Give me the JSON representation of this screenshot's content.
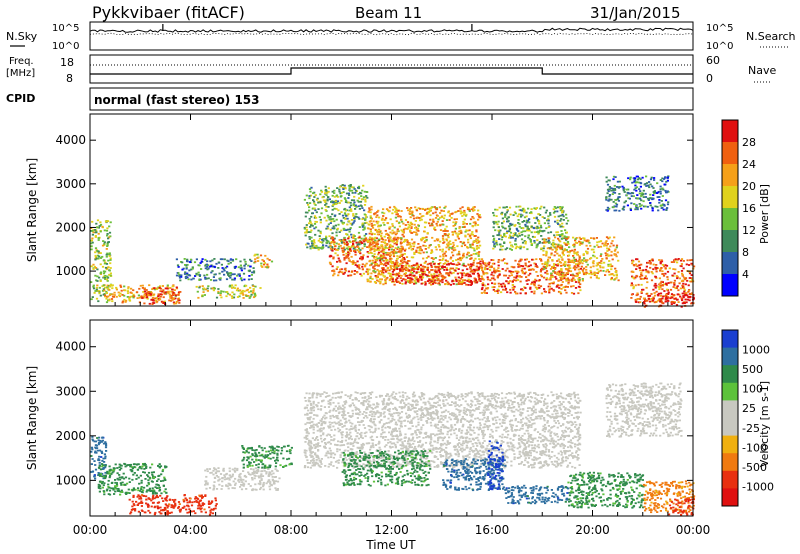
{
  "header": {
    "station": "Pykkvibaer (fitACF)",
    "beam": "Beam 11",
    "date": "31/Jan/2015"
  },
  "strip_labels": {
    "nsky": "N.Sky",
    "nsearch": "N.Search",
    "freq_line1": "Freq.",
    "freq_line2": "[MHz]",
    "nave": "Nave",
    "cpid": "CPID",
    "cpid_value": "normal (fast stereo) 153",
    "noise_ticks_left": [
      "10^5",
      "10^0"
    ],
    "noise_ticks_right": [
      "10^5",
      "10^0"
    ],
    "freq_ticks": [
      "18",
      "8"
    ],
    "nave_ticks": [
      "60",
      "0"
    ]
  },
  "x_axis": {
    "label": "Time UT",
    "ticks": [
      "00:00",
      "04:00",
      "08:00",
      "12:00",
      "16:00",
      "20:00",
      "00:00"
    ],
    "tick_hours": [
      0,
      4,
      8,
      12,
      16,
      20,
      24
    ],
    "range_hours": [
      0,
      24
    ]
  },
  "colors": {
    "power_scale": [
      "#0000ff",
      "#2e5fa8",
      "#3f8a5a",
      "#6bbf3a",
      "#e0d21c",
      "#f5a019",
      "#f06010",
      "#e01010"
    ],
    "velocity_scale": [
      "#1a3fd0",
      "#2e6fa0",
      "#2f8a4a",
      "#5cc23a",
      "#c8c8c0",
      "#c8c8c0",
      "#f0b010",
      "#f07a10",
      "#e83010",
      "#e01010"
    ]
  },
  "chart_data": [
    {
      "type": "heatmap",
      "panel": "power",
      "ylabel": "Slant Range [km]",
      "yticks": [
        1000,
        2000,
        3000,
        4000
      ],
      "ylim": [
        200,
        4600
      ],
      "xlim_hours": [
        0,
        24
      ],
      "colorbar": {
        "label": "Power [dB]",
        "ticks": [
          "28",
          "24",
          "20",
          "16",
          "12",
          "8",
          "4"
        ],
        "range": [
          0,
          30
        ]
      },
      "regions": [
        {
          "t0": 0.0,
          "t1": 0.8,
          "r0": 300,
          "r1": 2200,
          "level": 14
        },
        {
          "t0": 0.5,
          "t1": 3.5,
          "r0": 300,
          "r1": 700,
          "level": 20
        },
        {
          "t0": 2.0,
          "t1": 3.6,
          "r0": 250,
          "r1": 650,
          "level": 26
        },
        {
          "t0": 3.4,
          "t1": 6.5,
          "r0": 800,
          "r1": 1300,
          "level": 8
        },
        {
          "t0": 4.2,
          "t1": 6.8,
          "r0": 400,
          "r1": 700,
          "level": 16
        },
        {
          "t0": 6.5,
          "t1": 7.2,
          "r0": 1100,
          "r1": 1400,
          "level": 20
        },
        {
          "t0": 8.5,
          "t1": 11.0,
          "r0": 1500,
          "r1": 3000,
          "level": 12
        },
        {
          "t0": 9.5,
          "t1": 12.5,
          "r0": 900,
          "r1": 1800,
          "level": 24
        },
        {
          "t0": 11.0,
          "t1": 15.5,
          "r0": 700,
          "r1": 2500,
          "level": 20
        },
        {
          "t0": 12.0,
          "t1": 15.5,
          "r0": 700,
          "r1": 1200,
          "level": 28
        },
        {
          "t0": 15.5,
          "t1": 19.5,
          "r0": 500,
          "r1": 1300,
          "level": 24
        },
        {
          "t0": 16.0,
          "t1": 19.0,
          "r0": 1500,
          "r1": 2500,
          "level": 12
        },
        {
          "t0": 18.0,
          "t1": 21.0,
          "r0": 800,
          "r1": 1800,
          "level": 20
        },
        {
          "t0": 20.5,
          "t1": 23.0,
          "r0": 2400,
          "r1": 3200,
          "level": 8
        },
        {
          "t0": 21.5,
          "t1": 24.0,
          "r0": 300,
          "r1": 1300,
          "level": 24
        },
        {
          "t0": 22.0,
          "t1": 24.0,
          "r0": 200,
          "r1": 500,
          "level": 28
        }
      ]
    },
    {
      "type": "heatmap",
      "panel": "velocity",
      "ylabel": "Slant Range [km]",
      "yticks": [
        1000,
        2000,
        3000,
        4000
      ],
      "ylim": [
        200,
        4600
      ],
      "xlim_hours": [
        0,
        24
      ],
      "colorbar": {
        "label": "Velocity [m s-1]",
        "ticks": [
          "1000",
          "500",
          "100",
          "25",
          "-25",
          "-100",
          "-500",
          "-1000"
        ]
      },
      "regions": [
        {
          "t0": 0.0,
          "t1": 0.6,
          "r0": 1000,
          "r1": 2000,
          "level": 500
        },
        {
          "t0": 0.3,
          "t1": 3.0,
          "r0": 700,
          "r1": 1400,
          "level": 100
        },
        {
          "t0": 1.5,
          "t1": 5.0,
          "r0": 250,
          "r1": 700,
          "level": -500
        },
        {
          "t0": 4.5,
          "t1": 7.5,
          "r0": 800,
          "r1": 1300,
          "level": 0
        },
        {
          "t0": 6.0,
          "t1": 8.0,
          "r0": 1300,
          "r1": 1800,
          "level": 100
        },
        {
          "t0": 8.5,
          "t1": 19.5,
          "r0": 1300,
          "r1": 3000,
          "level": 0
        },
        {
          "t0": 10.0,
          "t1": 13.5,
          "r0": 900,
          "r1": 1700,
          "level": 100
        },
        {
          "t0": 14.0,
          "t1": 16.5,
          "r0": 800,
          "r1": 1500,
          "level": 500
        },
        {
          "t0": 15.8,
          "t1": 16.4,
          "r0": 800,
          "r1": 1900,
          "level": 1000
        },
        {
          "t0": 16.5,
          "t1": 19.0,
          "r0": 500,
          "r1": 900,
          "level": 500
        },
        {
          "t0": 19.0,
          "t1": 22.0,
          "r0": 400,
          "r1": 1200,
          "level": 100
        },
        {
          "t0": 20.5,
          "t1": 23.5,
          "r0": 2000,
          "r1": 3200,
          "level": 0
        },
        {
          "t0": 22.0,
          "t1": 24.0,
          "r0": 300,
          "r1": 1000,
          "level": -100
        },
        {
          "t0": 23.0,
          "t1": 24.0,
          "r0": 250,
          "r1": 600,
          "level": -500
        }
      ]
    }
  ]
}
